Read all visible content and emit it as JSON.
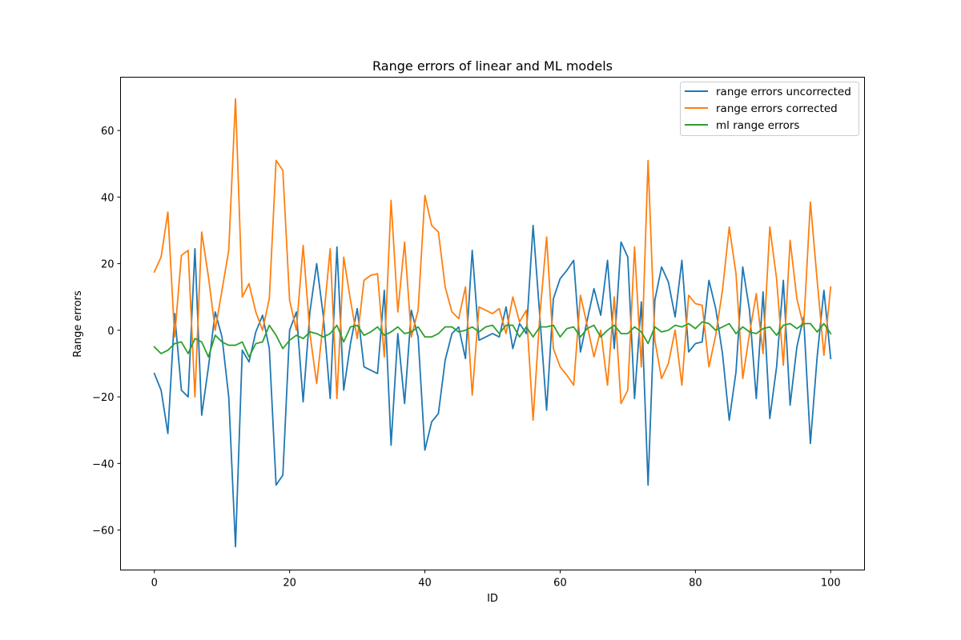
{
  "chart_data": {
    "type": "line",
    "title": "Range errors of linear and ML models",
    "xlabel": "ID",
    "ylabel": "Range errors",
    "xlim": [
      -5,
      105
    ],
    "ylim": [
      -72,
      76
    ],
    "xticks": [
      0,
      20,
      40,
      60,
      80,
      100
    ],
    "yticks": [
      -60,
      -40,
      -20,
      0,
      20,
      40,
      60
    ],
    "xtick_labels": [
      "0",
      "20",
      "40",
      "60",
      "80",
      "100"
    ],
    "ytick_labels": [
      "−60",
      "−40",
      "−20",
      "0",
      "20",
      "40",
      "60"
    ],
    "grid": false,
    "legend_position": "top-right",
    "x": [
      0,
      1,
      2,
      3,
      4,
      5,
      6,
      7,
      8,
      9,
      10,
      11,
      12,
      13,
      14,
      15,
      16,
      17,
      18,
      19,
      20,
      21,
      22,
      23,
      24,
      25,
      26,
      27,
      28,
      29,
      30,
      31,
      32,
      33,
      34,
      35,
      36,
      37,
      38,
      39,
      40,
      41,
      42,
      43,
      44,
      45,
      46,
      47,
      48,
      49,
      50,
      51,
      52,
      53,
      54,
      55,
      56,
      57,
      58,
      59,
      60,
      61,
      62,
      63,
      64,
      65,
      66,
      67,
      68,
      69,
      70,
      71,
      72,
      73,
      74,
      75,
      76,
      77,
      78,
      79,
      80,
      81,
      82,
      83,
      84,
      85,
      86,
      87,
      88,
      89,
      90,
      91,
      92,
      93,
      94,
      95,
      96,
      97,
      98,
      99,
      100
    ],
    "series": [
      {
        "name": "range errors uncorrected",
        "color": "#1f77b4",
        "values": [
          -13,
          -18,
          -31,
          5,
          -18,
          -20,
          24.5,
          -25.5,
          -11,
          5.5,
          -2,
          -20,
          -65,
          -6,
          -9.5,
          -0.5,
          4.5,
          -5.5,
          -46.5,
          -43.5,
          0,
          5.5,
          -21.5,
          5.5,
          20,
          4,
          -20.5,
          25,
          -18,
          -4,
          6.5,
          -11,
          -12,
          -13,
          12,
          -34.5,
          -1,
          -22,
          6,
          -2,
          -36,
          -27.5,
          -25,
          -9,
          -1,
          1,
          -8.5,
          24,
          -3,
          -2,
          -1,
          -2,
          7,
          -5.5,
          2,
          -1,
          31.5,
          4,
          -24,
          9.5,
          15.5,
          18,
          21,
          -6.5,
          3,
          12.5,
          4.5,
          21,
          -5.5,
          26.5,
          22,
          -20.5,
          8.5,
          -46.5,
          9,
          19,
          14.5,
          4,
          21,
          -6.5,
          -4,
          -3.5,
          15,
          6.5,
          -7,
          -27,
          -12.5,
          19,
          6,
          -20.5,
          11.5,
          -26.5,
          -11,
          15,
          -22.5,
          -5,
          4,
          -34,
          -8,
          12,
          -8.5
        ]
      },
      {
        "name": "range errors corrected",
        "color": "#ff7f0e",
        "values": [
          17.5,
          22,
          35.5,
          -2,
          22.5,
          24,
          -20,
          29.5,
          16,
          0,
          12,
          24,
          69.5,
          10,
          14,
          5.5,
          0,
          9.5,
          51,
          48,
          9,
          0,
          25.5,
          -1,
          -16,
          3,
          24.5,
          -20.5,
          22,
          9,
          -2.5,
          15,
          16.5,
          17,
          -8,
          39,
          5.5,
          26.5,
          -2,
          6,
          40.5,
          31.5,
          29.5,
          13,
          5.5,
          3.5,
          13,
          -19.5,
          7,
          6,
          5,
          6.5,
          -1,
          10,
          2.5,
          6,
          -27,
          4.5,
          28,
          -5.5,
          -11,
          -13.5,
          -16.5,
          10.5,
          1.5,
          -8,
          0,
          -16.5,
          10,
          -22,
          -18,
          25,
          -11,
          51,
          -3,
          -14.5,
          -10,
          0,
          -16.5,
          10.5,
          8,
          7.5,
          -11,
          -1.5,
          12,
          31,
          17,
          -14.5,
          -1,
          11,
          -7,
          31,
          15.5,
          -10.5,
          27,
          9.5,
          1,
          38.5,
          15,
          -7.5,
          13
        ]
      },
      {
        "name": "ml range errors",
        "color": "#2ca02c",
        "values": [
          -5,
          -7,
          -6,
          -4,
          -3.5,
          -7,
          -2.5,
          -3.5,
          -8,
          -1.5,
          -3.5,
          -4.5,
          -4.5,
          -3.5,
          -8,
          -4,
          -3.5,
          1.5,
          -1.5,
          -5.5,
          -3,
          -1.5,
          -2.5,
          -0.5,
          -1,
          -2,
          -1,
          1.5,
          -3.5,
          1,
          1.5,
          -1.5,
          -0.5,
          1,
          -1.5,
          -0.5,
          1,
          -1,
          -0.5,
          1,
          -2,
          -2,
          -1,
          1,
          1,
          -0.5,
          0,
          1,
          -0.5,
          1,
          1.5,
          -1,
          1.5,
          1.5,
          -2,
          1,
          -2,
          1,
          1,
          1.5,
          -2,
          0.5,
          1,
          -2,
          0.5,
          1.5,
          -2,
          0,
          1.5,
          -1,
          -1,
          1,
          -0.5,
          -4,
          1,
          -0.5,
          0,
          1.5,
          1,
          2,
          0.5,
          2.5,
          2,
          0,
          1,
          2,
          -1,
          1,
          -0.5,
          -1,
          0.5,
          1,
          -1.5,
          1.5,
          2,
          0.5,
          2,
          2,
          -0.5,
          2,
          -1
        ]
      }
    ]
  }
}
